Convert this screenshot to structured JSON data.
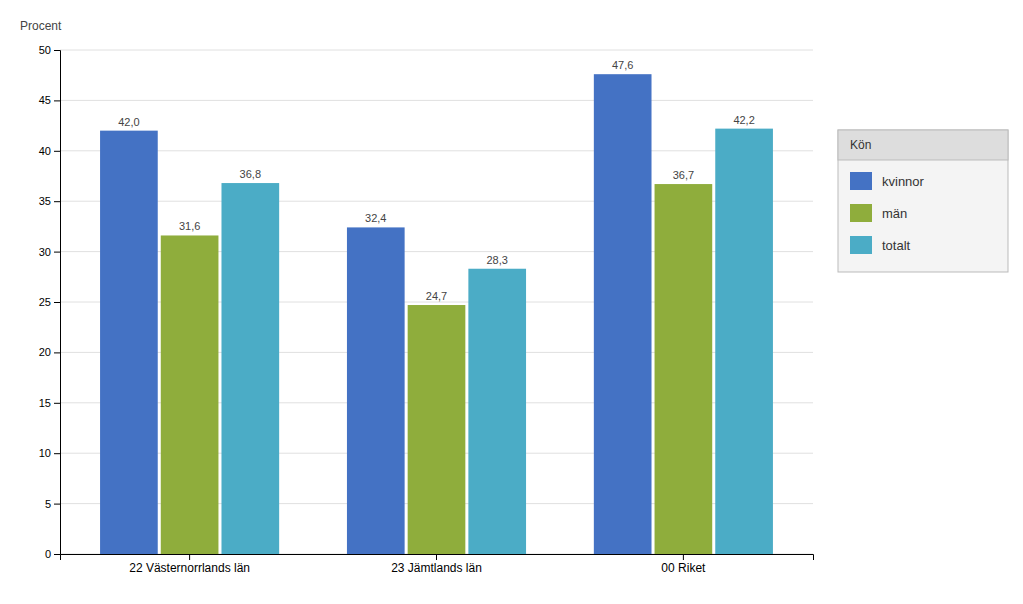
{
  "chart_data": {
    "type": "bar",
    "categories": [
      "22 Västernorrlands län",
      "23 Jämtlands län",
      "00 Riket"
    ],
    "series": [
      {
        "name": "kvinnor",
        "color": "#4472C4",
        "values": [
          42.0,
          32.4,
          47.6
        ],
        "value_labels": [
          "42,0",
          "32,4",
          "47,6"
        ]
      },
      {
        "name": "män",
        "color": "#8FAD3C",
        "values": [
          31.6,
          24.7,
          36.7
        ],
        "value_labels": [
          "31,6",
          "24,7",
          "36,7"
        ]
      },
      {
        "name": "totalt",
        "color": "#4BACC6",
        "values": [
          36.8,
          28.3,
          42.2
        ],
        "value_labels": [
          "36,8",
          "28,3",
          "42,2"
        ]
      }
    ],
    "ylabel": "Procent",
    "legend_title": "Kön",
    "ylim": [
      0,
      50
    ],
    "yticks": [
      0,
      5,
      10,
      15,
      20,
      25,
      30,
      35,
      40,
      45,
      50
    ],
    "grid": true,
    "legend": "right",
    "data_labels": true
  }
}
